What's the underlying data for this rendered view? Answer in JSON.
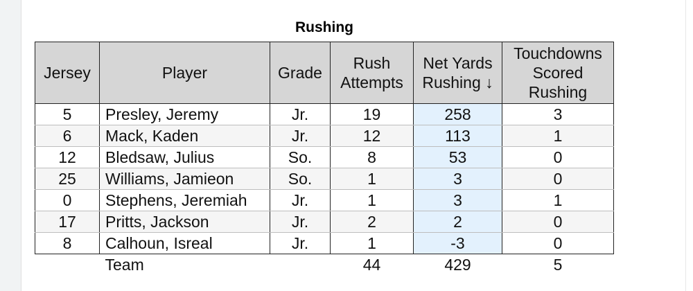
{
  "title": "Rushing",
  "columns": {
    "jersey": "Jersey",
    "player": "Player",
    "grade": "Grade",
    "rush_attempts": "Rush Attempts",
    "net_yards": "Net Yards Rushing ↓",
    "touchdowns": "Touchdowns Scored Rushing"
  },
  "rows": [
    {
      "jersey": "5",
      "player": "Presley, Jeremy",
      "grade": "Jr.",
      "rush_attempts": "19",
      "net_yards": "258",
      "touchdowns": "3"
    },
    {
      "jersey": "6",
      "player": "Mack, Kaden",
      "grade": "Jr.",
      "rush_attempts": "12",
      "net_yards": "113",
      "touchdowns": "1"
    },
    {
      "jersey": "12",
      "player": "Bledsaw, Julius",
      "grade": "So.",
      "rush_attempts": "8",
      "net_yards": "53",
      "touchdowns": "0"
    },
    {
      "jersey": "25",
      "player": "Williams, Jamieon",
      "grade": "So.",
      "rush_attempts": "1",
      "net_yards": "3",
      "touchdowns": "0"
    },
    {
      "jersey": "0",
      "player": "Stephens, Jeremiah",
      "grade": "Jr.",
      "rush_attempts": "1",
      "net_yards": "3",
      "touchdowns": "1"
    },
    {
      "jersey": "17",
      "player": "Pritts, Jackson",
      "grade": "Jr.",
      "rush_attempts": "2",
      "net_yards": "2",
      "touchdowns": "0"
    },
    {
      "jersey": "8",
      "player": "Calhoun, Isreal",
      "grade": "Jr.",
      "rush_attempts": "1",
      "net_yards": "-3",
      "touchdowns": "0"
    }
  ],
  "totals": {
    "label": "Team",
    "rush_attempts": "44",
    "net_yards": "429",
    "touchdowns": "5"
  },
  "colors": {
    "header_bg": "#d6d6d6",
    "sorted_column_bg": "#e3f1fd",
    "alt_row_bg": "#f5f5f5"
  }
}
